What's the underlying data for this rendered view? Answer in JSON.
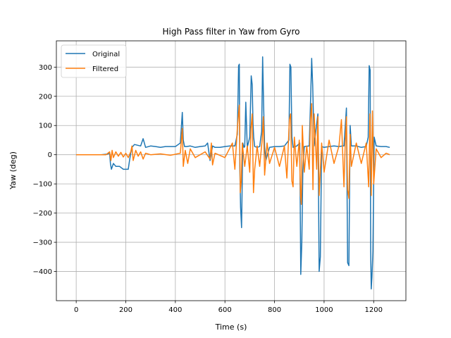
{
  "chart_data": {
    "type": "line",
    "title": "High Pass filter in Yaw from Gyro",
    "xlabel": "Time (s)",
    "ylabel": "Yaw (deg)",
    "xlim": [
      -80,
      1330
    ],
    "ylim": [
      -500,
      390
    ],
    "xticks": [
      0,
      200,
      400,
      600,
      800,
      1000,
      1200
    ],
    "yticks": [
      -400,
      -300,
      -200,
      -100,
      0,
      100,
      200,
      300
    ],
    "grid": true,
    "legend": "top-left",
    "series": [
      {
        "name": "Original",
        "color": "#1f77b4",
        "x": [
          0,
          100,
          125,
          135,
          138,
          142,
          150,
          160,
          175,
          190,
          210,
          215,
          220,
          225,
          235,
          260,
          270,
          280,
          300,
          320,
          340,
          360,
          400,
          420,
          428,
          432,
          437,
          445,
          460,
          480,
          500,
          520,
          530,
          540,
          550,
          560,
          580,
          600,
          620,
          640,
          650,
          655,
          658,
          660,
          663,
          667,
          672,
          677,
          680,
          684,
          690,
          700,
          706,
          710,
          713,
          716,
          720,
          730,
          740,
          748,
          752,
          756,
          760,
          765,
          780,
          800,
          820,
          840,
          858,
          862,
          866,
          870,
          875,
          890,
          902,
          906,
          910,
          914,
          920,
          940,
          946,
          950,
          954,
          960,
          975,
          980,
          985,
          990,
          1000,
          1020,
          1040,
          1060,
          1075,
          1080,
          1090,
          1095,
          1100,
          1105,
          1110,
          1130,
          1150,
          1170,
          1178,
          1182,
          1186,
          1188,
          1190,
          1193,
          1197,
          1202,
          1210,
          1230,
          1250,
          1265
        ],
        "y": [
          0,
          0,
          2,
          5,
          -30,
          -50,
          -30,
          -40,
          -40,
          -50,
          -50,
          -20,
          5,
          25,
          35,
          30,
          55,
          25,
          30,
          28,
          25,
          28,
          28,
          40,
          145,
          50,
          28,
          28,
          30,
          25,
          28,
          30,
          40,
          -20,
          30,
          25,
          25,
          28,
          30,
          30,
          70,
          305,
          310,
          -40,
          -180,
          -250,
          40,
          25,
          28,
          180,
          25,
          60,
          270,
          240,
          110,
          60,
          28,
          25,
          28,
          80,
          335,
          170,
          28,
          -20,
          25,
          28,
          28,
          30,
          50,
          310,
          300,
          60,
          25,
          30,
          40,
          -410,
          -300,
          -60,
          28,
          30,
          200,
          330,
          240,
          30,
          140,
          -400,
          -350,
          28,
          25,
          28,
          30,
          28,
          30,
          30,
          160,
          -370,
          -380,
          100,
          30,
          30,
          25,
          28,
          60,
          305,
          290,
          -330,
          -460,
          -420,
          -330,
          60,
          30,
          28,
          28,
          25
        ]
      },
      {
        "name": "Filtered",
        "color": "#ff7f0e",
        "x": [
          0,
          120,
          135,
          140,
          145,
          150,
          160,
          170,
          180,
          190,
          200,
          210,
          220,
          225,
          230,
          240,
          250,
          260,
          270,
          280,
          300,
          340,
          380,
          420,
          428,
          432,
          440,
          450,
          460,
          480,
          520,
          540,
          545,
          550,
          560,
          600,
          630,
          640,
          650,
          658,
          662,
          666,
          670,
          680,
          690,
          700,
          705,
          710,
          715,
          720,
          730,
          740,
          750,
          755,
          760,
          770,
          780,
          800,
          820,
          840,
          850,
          860,
          865,
          870,
          875,
          880,
          890,
          900,
          905,
          908,
          912,
          920,
          930,
          940,
          945,
          950,
          955,
          960,
          970,
          975,
          980,
          990,
          1000,
          1020,
          1040,
          1060,
          1070,
          1080,
          1085,
          1090,
          1095,
          1100,
          1105,
          1110,
          1130,
          1150,
          1170,
          1180,
          1185,
          1190,
          1195,
          1200,
          1210,
          1230,
          1250,
          1265
        ],
        "y": [
          0,
          0,
          10,
          -20,
          15,
          -10,
          10,
          -5,
          8,
          -8,
          5,
          -10,
          10,
          30,
          -20,
          15,
          -5,
          10,
          -15,
          5,
          0,
          3,
          -2,
          5,
          90,
          -40,
          15,
          -30,
          20,
          -10,
          10,
          -15,
          40,
          -35,
          5,
          -10,
          40,
          -50,
          90,
          170,
          -130,
          -90,
          40,
          -40,
          30,
          -60,
          90,
          140,
          -130,
          -50,
          30,
          -40,
          50,
          130,
          -70,
          40,
          -30,
          25,
          -40,
          30,
          -80,
          120,
          140,
          -90,
          -110,
          60,
          -40,
          50,
          -140,
          -170,
          100,
          -60,
          30,
          -50,
          120,
          175,
          -120,
          140,
          -50,
          130,
          -140,
          40,
          -60,
          50,
          -30,
          30,
          120,
          -110,
          30,
          130,
          -120,
          -150,
          70,
          -40,
          40,
          -30,
          40,
          -110,
          140,
          -140,
          150,
          -100,
          20,
          -10,
          5,
          0
        ]
      }
    ]
  }
}
